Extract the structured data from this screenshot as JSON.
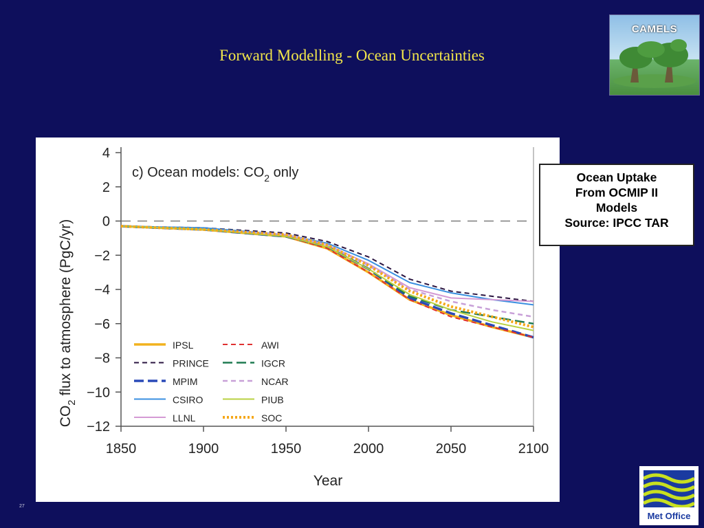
{
  "slide": {
    "title": "Forward Modelling - Ocean Uncertainties",
    "slide_number": "27"
  },
  "logos": {
    "camels_label": "CAMELS",
    "metoffice_label": "Met Office"
  },
  "info_box": {
    "lines": [
      "Ocean Uptake",
      "From OCMIP II",
      "Models",
      "Source: IPCC TAR"
    ]
  },
  "colors": {
    "background": "#0e0f5c",
    "title": "#f2e64a"
  },
  "chart_data": {
    "type": "line",
    "title": "c) Ocean models: CO",
    "title_subscript": "2",
    "title_suffix": " only",
    "xlabel": "Year",
    "ylabel": "CO",
    "ylabel_subscript": "2",
    "ylabel_suffix": " flux to atmosphere (PgC/yr)",
    "xlim": [
      1850,
      2100
    ],
    "ylim": [
      -12,
      4
    ],
    "xticks": [
      1850,
      1900,
      1950,
      2000,
      2050,
      2100
    ],
    "yticks": [
      4,
      2,
      0,
      -2,
      -4,
      -6,
      -8,
      -10,
      -12
    ],
    "ytick_labels": [
      "4",
      "2",
      "0",
      "−2",
      "−4",
      "−6",
      "−8",
      "−10",
      "−12"
    ],
    "zero_line": true,
    "grid": false,
    "legend_position": "bottom-left",
    "x": [
      1850,
      1900,
      1950,
      1975,
      2000,
      2025,
      2050,
      2075,
      2100
    ],
    "series": [
      {
        "name": "IPSL",
        "color": "#f2b21e",
        "dash": "solid",
        "width": 3.5,
        "values": [
          -0.3,
          -0.5,
          -0.9,
          -1.6,
          -3.0,
          -4.6,
          -5.5,
          -6.2,
          -6.8
        ]
      },
      {
        "name": "PRINCE",
        "color": "#2a1440",
        "dash": "dash",
        "width": 2,
        "values": [
          -0.3,
          -0.4,
          -0.7,
          -1.2,
          -2.1,
          -3.4,
          -4.1,
          -4.4,
          -4.7
        ]
      },
      {
        "name": "MPIM",
        "color": "#2a4ab8",
        "dash": "longdash",
        "width": 3.5,
        "values": [
          -0.3,
          -0.5,
          -0.9,
          -1.5,
          -2.8,
          -4.5,
          -5.4,
          -6.1,
          -6.8
        ]
      },
      {
        "name": "CSIRO",
        "color": "#3a8fe0",
        "dash": "solid",
        "width": 2,
        "values": [
          -0.3,
          -0.4,
          -0.8,
          -1.3,
          -2.3,
          -3.6,
          -4.2,
          -4.6,
          -4.9
        ]
      },
      {
        "name": "LLNL",
        "color": "#d49ad4",
        "dash": "solid",
        "width": 2,
        "values": [
          -0.3,
          -0.5,
          -0.8,
          -1.4,
          -2.5,
          -3.9,
          -4.5,
          -4.6,
          -4.7
        ]
      },
      {
        "name": "AWI",
        "color": "#e03030",
        "dash": "dash",
        "width": 2,
        "values": [
          -0.3,
          -0.5,
          -0.9,
          -1.6,
          -3.0,
          -4.6,
          -5.6,
          -6.2,
          -6.8
        ]
      },
      {
        "name": "IGCR",
        "color": "#1e7a50",
        "dash": "longdash",
        "width": 2.5,
        "values": [
          -0.3,
          -0.5,
          -0.9,
          -1.5,
          -2.8,
          -4.4,
          -5.2,
          -5.6,
          -6.0
        ]
      },
      {
        "name": "NCAR",
        "color": "#c8a0d8",
        "dash": "dash",
        "width": 2.5,
        "values": [
          -0.3,
          -0.5,
          -0.8,
          -1.4,
          -2.6,
          -4.0,
          -4.7,
          -5.2,
          -5.6
        ]
      },
      {
        "name": "PIUB",
        "color": "#b8d040",
        "dash": "solid",
        "width": 2,
        "values": [
          -0.3,
          -0.5,
          -0.9,
          -1.5,
          -2.8,
          -4.3,
          -5.2,
          -5.9,
          -6.4
        ]
      },
      {
        "name": "SOC",
        "color": "#f5a81a",
        "dash": "dot",
        "width": 4,
        "values": [
          -0.3,
          -0.5,
          -0.8,
          -1.4,
          -2.6,
          -4.1,
          -5.0,
          -5.6,
          -6.2
        ]
      }
    ]
  }
}
